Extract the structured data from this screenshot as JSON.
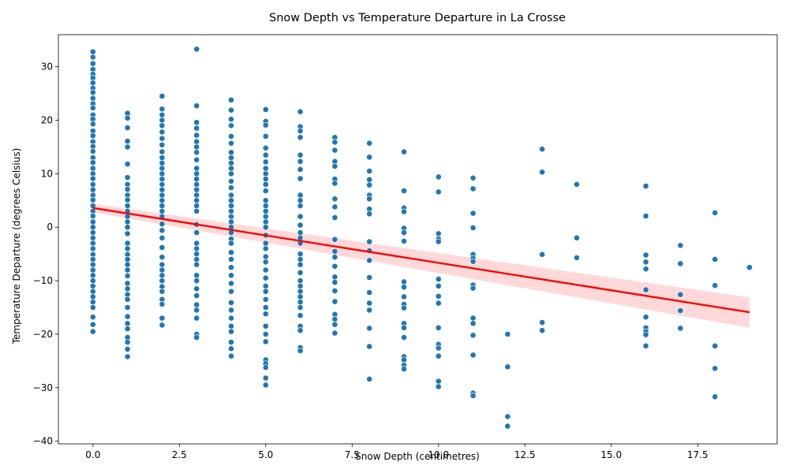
{
  "chart_data": {
    "type": "scatter",
    "title": "Snow Depth vs Temperature Departure in La Crosse",
    "xlabel": "Snow Depth (centimetres)",
    "ylabel": "Temperature Departure (degrees Celsius)",
    "xlim": [
      -1,
      19.8
    ],
    "ylim": [
      -40.5,
      36
    ],
    "xticks": [
      0.0,
      2.5,
      5.0,
      7.5,
      10.0,
      12.5,
      15.0,
      17.5
    ],
    "xtick_labels": [
      "0.0",
      "2.5",
      "5.0",
      "7.5",
      "10.0",
      "12.5",
      "15.0",
      "17.5"
    ],
    "yticks": [
      -40,
      -30,
      -20,
      -10,
      0,
      10,
      20,
      30
    ],
    "ytick_labels": [
      "−40",
      "−30",
      "−20",
      "−10",
      "0",
      "10",
      "20",
      "30"
    ],
    "grid": false,
    "legend": "none",
    "point_color": "#1f77b4",
    "regression": {
      "color": "#ff0000",
      "x": [
        0,
        19
      ],
      "y": [
        3.6,
        -15.9
      ],
      "ci_lower_at_x0": 2.8,
      "ci_upper_at_x0": 4.4,
      "ci_lower_at_x19": -18.8,
      "ci_upper_at_x19": -13.1
    },
    "points": [
      [
        0,
        32.8
      ],
      [
        0,
        31.8
      ],
      [
        0,
        30.6
      ],
      [
        0,
        29.5
      ],
      [
        0,
        28.6
      ],
      [
        0,
        27.9
      ],
      [
        0,
        27.0
      ],
      [
        0,
        26.0
      ],
      [
        0,
        25.2
      ],
      [
        0,
        24.1
      ],
      [
        0,
        23.1
      ],
      [
        0,
        22.3
      ],
      [
        0,
        21.0
      ],
      [
        0,
        20.2
      ],
      [
        0,
        19.3
      ],
      [
        0,
        18.0
      ],
      [
        0,
        17.1
      ],
      [
        0,
        16.0
      ],
      [
        0,
        15.1
      ],
      [
        0,
        14.2
      ],
      [
        0,
        13.0
      ],
      [
        0,
        12.1
      ],
      [
        0,
        11.0
      ],
      [
        0,
        10.0
      ],
      [
        0,
        9.1
      ],
      [
        0,
        8.0
      ],
      [
        0,
        7.0
      ],
      [
        0,
        6.0
      ],
      [
        0,
        5.1
      ],
      [
        0,
        4.0
      ],
      [
        0,
        3.0
      ],
      [
        0,
        2.1
      ],
      [
        0,
        1.0
      ],
      [
        0,
        0.0
      ],
      [
        0,
        -1.0
      ],
      [
        0,
        -2.0
      ],
      [
        0,
        -3.0
      ],
      [
        0,
        -4.0
      ],
      [
        0,
        -5.1
      ],
      [
        0,
        -6.0
      ],
      [
        0,
        -7.0
      ],
      [
        0,
        -8.0
      ],
      [
        0,
        -9.0
      ],
      [
        0,
        -10.0
      ],
      [
        0,
        -11.0
      ],
      [
        0,
        -12.0
      ],
      [
        0,
        -13.0
      ],
      [
        0,
        -14.0
      ],
      [
        0,
        -15.0
      ],
      [
        0,
        -16.8
      ],
      [
        0,
        -18.2
      ],
      [
        0,
        -19.5
      ],
      [
        1,
        21.3
      ],
      [
        1,
        20.4
      ],
      [
        1,
        18.6
      ],
      [
        1,
        16.1
      ],
      [
        1,
        15.0
      ],
      [
        1,
        11.8
      ],
      [
        1,
        9.3
      ],
      [
        1,
        8.0
      ],
      [
        1,
        7.1
      ],
      [
        1,
        6.0
      ],
      [
        1,
        5.1
      ],
      [
        1,
        4.0
      ],
      [
        1,
        3.0
      ],
      [
        1,
        2.0
      ],
      [
        1,
        1.0
      ],
      [
        1,
        0.0
      ],
      [
        1,
        -1.2
      ],
      [
        1,
        -3.0
      ],
      [
        1,
        -4.0
      ],
      [
        1,
        -5.1
      ],
      [
        1,
        -6.0
      ],
      [
        1,
        -7.0
      ],
      [
        1,
        -8.0
      ],
      [
        1,
        -9.1
      ],
      [
        1,
        -10.5
      ],
      [
        1,
        -11.5
      ],
      [
        1,
        -12.6
      ],
      [
        1,
        -13.5
      ],
      [
        1,
        -15.0
      ],
      [
        1,
        -16.7
      ],
      [
        1,
        -18.0
      ],
      [
        1,
        -19.0
      ],
      [
        1,
        -20.6
      ],
      [
        1,
        -21.5
      ],
      [
        1,
        -22.8
      ],
      [
        1,
        -24.2
      ],
      [
        2,
        24.5
      ],
      [
        2,
        22.1
      ],
      [
        2,
        21.0
      ],
      [
        2,
        20.0
      ],
      [
        2,
        19.0
      ],
      [
        2,
        17.8
      ],
      [
        2,
        16.6
      ],
      [
        2,
        15.4
      ],
      [
        2,
        14.1
      ],
      [
        2,
        13.0
      ],
      [
        2,
        12.0
      ],
      [
        2,
        11.0
      ],
      [
        2,
        10.0
      ],
      [
        2,
        9.0
      ],
      [
        2,
        8.0
      ],
      [
        2,
        7.0
      ],
      [
        2,
        6.0
      ],
      [
        2,
        5.0
      ],
      [
        2,
        4.0
      ],
      [
        2,
        3.0
      ],
      [
        2,
        2.0
      ],
      [
        2,
        0.6
      ],
      [
        2,
        -0.6
      ],
      [
        2,
        -2.0
      ],
      [
        2,
        -3.8
      ],
      [
        2,
        -5.6
      ],
      [
        2,
        -7.0
      ],
      [
        2,
        -8.0
      ],
      [
        2,
        -9.0
      ],
      [
        2,
        -10.0
      ],
      [
        2,
        -11.1
      ],
      [
        2,
        -12.0
      ],
      [
        2,
        -13.5
      ],
      [
        2,
        -14.4
      ],
      [
        2,
        -17.0
      ],
      [
        2,
        -18.3
      ],
      [
        3,
        33.3
      ],
      [
        3,
        22.7
      ],
      [
        3,
        19.6
      ],
      [
        3,
        18.5
      ],
      [
        3,
        17.2
      ],
      [
        3,
        16.0
      ],
      [
        3,
        15.0
      ],
      [
        3,
        14.0
      ],
      [
        3,
        12.6
      ],
      [
        3,
        11.0
      ],
      [
        3,
        10.0
      ],
      [
        3,
        9.0
      ],
      [
        3,
        8.0
      ],
      [
        3,
        7.0
      ],
      [
        3,
        6.0
      ],
      [
        3,
        5.0
      ],
      [
        3,
        4.0
      ],
      [
        3,
        3.0
      ],
      [
        3,
        0.5
      ],
      [
        3,
        -1.0
      ],
      [
        3,
        -3.0
      ],
      [
        3,
        -4.0
      ],
      [
        3,
        -5.0
      ],
      [
        3,
        -6.0
      ],
      [
        3,
        -7.0
      ],
      [
        3,
        -9.0
      ],
      [
        3,
        -10.0
      ],
      [
        3,
        -11.5
      ],
      [
        3,
        -12.8
      ],
      [
        3,
        -14.5
      ],
      [
        3,
        -15.5
      ],
      [
        3,
        -17.0
      ],
      [
        3,
        -20.0
      ],
      [
        3,
        -20.6
      ],
      [
        4,
        23.8
      ],
      [
        4,
        21.9
      ],
      [
        4,
        20.2
      ],
      [
        4,
        19.0
      ],
      [
        4,
        17.0
      ],
      [
        4,
        15.7
      ],
      [
        4,
        14.0
      ],
      [
        4,
        13.0
      ],
      [
        4,
        12.0
      ],
      [
        4,
        11.0
      ],
      [
        4,
        10.0
      ],
      [
        4,
        8.6
      ],
      [
        4,
        7.4
      ],
      [
        4,
        6.0
      ],
      [
        4,
        5.0
      ],
      [
        4,
        4.0
      ],
      [
        4,
        3.0
      ],
      [
        4,
        2.0
      ],
      [
        4,
        1.0
      ],
      [
        4,
        0.0
      ],
      [
        4,
        -1.0
      ],
      [
        4,
        -2.2
      ],
      [
        4,
        -3.0
      ],
      [
        4,
        -4.7
      ],
      [
        4,
        -6.0
      ],
      [
        4,
        -7.5
      ],
      [
        4,
        -9.0
      ],
      [
        4,
        -10.5
      ],
      [
        4,
        -12.0
      ],
      [
        4,
        -14.1
      ],
      [
        4,
        -15.5
      ],
      [
        4,
        -17.0
      ],
      [
        4,
        -18.5
      ],
      [
        4,
        -19.5
      ],
      [
        4,
        -21.5
      ],
      [
        4,
        -22.7
      ],
      [
        4,
        -24.1
      ],
      [
        5,
        22.0
      ],
      [
        5,
        19.8
      ],
      [
        5,
        19.1
      ],
      [
        5,
        17.0
      ],
      [
        5,
        14.8
      ],
      [
        5,
        13.5
      ],
      [
        5,
        12.2
      ],
      [
        5,
        11.0
      ],
      [
        5,
        10.0
      ],
      [
        5,
        9.0
      ],
      [
        5,
        8.0
      ],
      [
        5,
        6.8
      ],
      [
        5,
        5.0
      ],
      [
        5,
        4.0
      ],
      [
        5,
        3.0
      ],
      [
        5,
        2.0
      ],
      [
        5,
        1.0
      ],
      [
        5,
        0.0
      ],
      [
        5,
        -1.5
      ],
      [
        5,
        -3.0
      ],
      [
        5,
        -4.0
      ],
      [
        5,
        -5.5
      ],
      [
        5,
        -6.5
      ],
      [
        5,
        -8.0
      ],
      [
        5,
        -9.5
      ],
      [
        5,
        -11.0
      ],
      [
        5,
        -12.0
      ],
      [
        5,
        -13.5
      ],
      [
        5,
        -15.0
      ],
      [
        5,
        -16.2
      ],
      [
        5,
        -18.5
      ],
      [
        5,
        -20.0
      ],
      [
        5,
        -21.4
      ],
      [
        5,
        -24.8
      ],
      [
        5,
        -25.5
      ],
      [
        5,
        -26.2
      ],
      [
        5,
        -28.2
      ],
      [
        5,
        -29.5
      ],
      [
        6,
        21.6
      ],
      [
        6,
        18.8
      ],
      [
        6,
        18.0
      ],
      [
        6,
        16.8
      ],
      [
        6,
        13.5
      ],
      [
        6,
        12.3
      ],
      [
        6,
        10.8
      ],
      [
        6,
        9.1
      ],
      [
        6,
        6.0
      ],
      [
        6,
        5.0
      ],
      [
        6,
        4.0
      ],
      [
        6,
        2.0
      ],
      [
        6,
        0.4
      ],
      [
        6,
        -1.0
      ],
      [
        6,
        -2.0
      ],
      [
        6,
        -3.0
      ],
      [
        6,
        -5.0
      ],
      [
        6,
        -6.0
      ],
      [
        6,
        -7.0
      ],
      [
        6,
        -8.5
      ],
      [
        6,
        -10.0
      ],
      [
        6,
        -11.0
      ],
      [
        6,
        -12.0
      ],
      [
        6,
        -13.0
      ],
      [
        6,
        -14.0
      ],
      [
        6,
        -15.0
      ],
      [
        6,
        -16.5
      ],
      [
        6,
        -18.5
      ],
      [
        6,
        -19.3
      ],
      [
        6,
        -22.5
      ],
      [
        6,
        -23.1
      ],
      [
        7,
        16.8
      ],
      [
        7,
        15.9
      ],
      [
        7,
        14.4
      ],
      [
        7,
        12.3
      ],
      [
        7,
        11.4
      ],
      [
        7,
        9.0
      ],
      [
        7,
        8.2
      ],
      [
        7,
        5.3
      ],
      [
        7,
        3.8
      ],
      [
        7,
        1.8
      ],
      [
        7,
        -2.3
      ],
      [
        7,
        -4.5
      ],
      [
        7,
        -5.6
      ],
      [
        7,
        -7.3
      ],
      [
        7,
        -9.3
      ],
      [
        7,
        -10.3
      ],
      [
        7,
        -11.9
      ],
      [
        7,
        -13.9
      ],
      [
        7,
        -16.3
      ],
      [
        7,
        -17.2
      ],
      [
        7,
        -18.2
      ],
      [
        7,
        -19.8
      ],
      [
        8,
        15.7
      ],
      [
        8,
        13.1
      ],
      [
        8,
        10.5
      ],
      [
        8,
        8.9
      ],
      [
        8,
        7.9
      ],
      [
        8,
        6.0
      ],
      [
        8,
        5.3
      ],
      [
        8,
        3.4
      ],
      [
        8,
        2.5
      ],
      [
        8,
        -2.7
      ],
      [
        8,
        -4.4
      ],
      [
        8,
        -6.2
      ],
      [
        8,
        -9.4
      ],
      [
        8,
        -12.2
      ],
      [
        8,
        -14.2
      ],
      [
        8,
        -15.5
      ],
      [
        8,
        -18.9
      ],
      [
        8,
        -22.3
      ],
      [
        8,
        -28.4
      ],
      [
        9,
        14.1
      ],
      [
        9,
        6.8
      ],
      [
        9,
        3.6
      ],
      [
        9,
        2.9
      ],
      [
        9,
        -0.2
      ],
      [
        9,
        -1.0
      ],
      [
        9,
        -2.6
      ],
      [
        9,
        -10.2
      ],
      [
        9,
        -11.2
      ],
      [
        9,
        -13.0
      ],
      [
        9,
        -14.4
      ],
      [
        9,
        -15.1
      ],
      [
        9,
        -18.0
      ],
      [
        9,
        -18.8
      ],
      [
        9,
        -20.6
      ],
      [
        9,
        -24.2
      ],
      [
        9,
        -24.8
      ],
      [
        9,
        -25.8
      ],
      [
        9,
        -26.5
      ],
      [
        10,
        9.4
      ],
      [
        10,
        6.6
      ],
      [
        10,
        -1.2
      ],
      [
        10,
        -2.2
      ],
      [
        10,
        -2.7
      ],
      [
        10,
        -9.7
      ],
      [
        10,
        -11.0
      ],
      [
        10,
        -12.9
      ],
      [
        10,
        -14.2
      ],
      [
        10,
        -18.8
      ],
      [
        10,
        -21.9
      ],
      [
        10,
        -22.6
      ],
      [
        10,
        -24.1
      ],
      [
        10,
        -28.8
      ],
      [
        10,
        -29.8
      ],
      [
        11,
        9.2
      ],
      [
        11,
        7.2
      ],
      [
        11,
        2.6
      ],
      [
        11,
        -0.1
      ],
      [
        11,
        -5.1
      ],
      [
        11,
        -5.8
      ],
      [
        11,
        -6.4
      ],
      [
        11,
        -10.8
      ],
      [
        11,
        -11.4
      ],
      [
        11,
        -17.0
      ],
      [
        11,
        -18.0
      ],
      [
        11,
        -20.2
      ],
      [
        11,
        -23.9
      ],
      [
        11,
        -31.0
      ],
      [
        11,
        -31.5
      ],
      [
        12,
        -20.0
      ],
      [
        12,
        -26.1
      ],
      [
        12,
        -35.4
      ],
      [
        12,
        -37.2
      ],
      [
        13,
        14.6
      ],
      [
        13,
        10.3
      ],
      [
        13,
        -5.1
      ],
      [
        13,
        -17.8
      ],
      [
        13,
        -19.3
      ],
      [
        14,
        8.0
      ],
      [
        14,
        -2.0
      ],
      [
        14,
        -5.7
      ],
      [
        16,
        7.7
      ],
      [
        16,
        2.1
      ],
      [
        16,
        -5.2
      ],
      [
        16,
        -6.5
      ],
      [
        16,
        -7.8
      ],
      [
        16,
        -11.7
      ],
      [
        16,
        -16.8
      ],
      [
        16,
        -18.8
      ],
      [
        16,
        -19.5
      ],
      [
        16,
        -20.1
      ],
      [
        16,
        -22.2
      ],
      [
        17,
        -3.4
      ],
      [
        17,
        -6.8
      ],
      [
        17,
        -12.6
      ],
      [
        17,
        -15.6
      ],
      [
        17,
        -18.9
      ],
      [
        18,
        2.7
      ],
      [
        18,
        -6.0
      ],
      [
        18,
        -10.9
      ],
      [
        18,
        -22.2
      ],
      [
        18,
        -26.4
      ],
      [
        18,
        -31.7
      ],
      [
        19,
        -7.5
      ]
    ]
  }
}
